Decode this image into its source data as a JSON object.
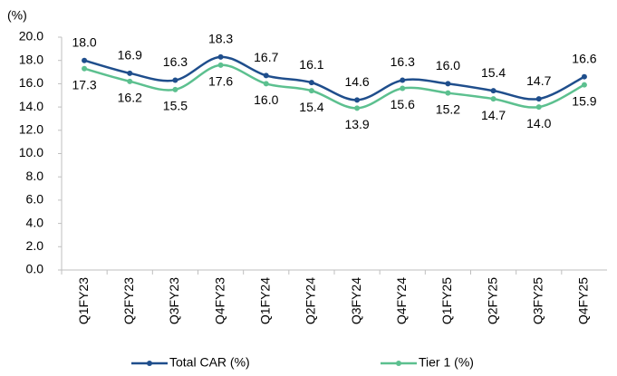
{
  "chart_data": {
    "type": "line",
    "y_label": "(%)",
    "categories": [
      "Q1FY23",
      "Q2FY23",
      "Q3FY23",
      "Q4FY23",
      "Q1FY24",
      "Q2FY24",
      "Q3FY24",
      "Q4FY24",
      "Q1FY25",
      "Q2FY25",
      "Q3FY25",
      "Q4FY25"
    ],
    "series": [
      {
        "name": "Total CAR (%)",
        "color": "#1f4e8c",
        "values": [
          18.0,
          16.9,
          16.3,
          18.3,
          16.7,
          16.1,
          14.6,
          16.3,
          16.0,
          15.4,
          14.7,
          16.6
        ],
        "value_labels": [
          "18.0",
          "16.9",
          "16.3",
          "18.3",
          "16.7",
          "16.1",
          "14.6",
          "16.3",
          "16.0",
          "15.4",
          "14.7",
          "16.6"
        ]
      },
      {
        "name": "Tier 1 (%)",
        "color": "#5cc08f",
        "values": [
          17.3,
          16.2,
          15.5,
          17.6,
          16.0,
          15.4,
          13.9,
          15.6,
          15.2,
          14.7,
          14.0,
          15.9
        ],
        "value_labels": [
          "17.3",
          "16.2",
          "15.5",
          "17.6",
          "16.0",
          "15.4",
          "13.9",
          "15.6",
          "15.2",
          "14.7",
          "14.0",
          "15.9"
        ]
      }
    ],
    "ylim": [
      0,
      20
    ],
    "yticks": [
      {
        "value": 0,
        "label": "0.0"
      },
      {
        "value": 2,
        "label": "2.0"
      },
      {
        "value": 4,
        "label": "4.0"
      },
      {
        "value": 6,
        "label": "6.0"
      },
      {
        "value": 8,
        "label": "8.0"
      },
      {
        "value": 10,
        "label": "10.0"
      },
      {
        "value": 12,
        "label": "12.0"
      },
      {
        "value": 14,
        "label": "14.0"
      },
      {
        "value": 16,
        "label": "16.0"
      },
      {
        "value": 18,
        "label": "18.0"
      },
      {
        "value": 20,
        "label": "20.0"
      }
    ],
    "smooth": true,
    "legend": "bottom"
  }
}
